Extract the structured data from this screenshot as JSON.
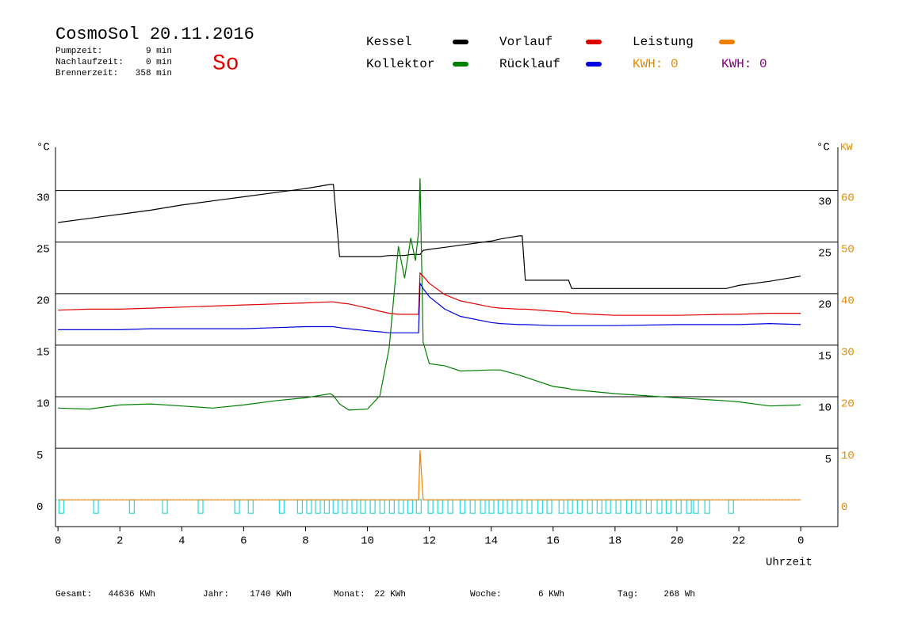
{
  "chart_data": {
    "type": "line",
    "title": "CosmoSol 20.11.2016",
    "day": "So",
    "info": [
      [
        "Pumpzeit:",
        "9 min"
      ],
      [
        "Nachlaufzeit:",
        "0 min"
      ],
      [
        "Brennerzeit:",
        "358 min"
      ]
    ],
    "energy_labels": [
      {
        "text": "KWH: 0",
        "color": "#e08a00"
      },
      {
        "text": "KWH: 0",
        "color": "#800080"
      }
    ],
    "y_unit": "°C",
    "y_unit_right": "°C",
    "y2_unit": "KW",
    "x_label": "Uhrzeit",
    "xlim": [
      -0.08,
      25.2
    ],
    "ylim": [
      -2.6,
      34.2
    ],
    "y2lim": [
      -5.2,
      68.4
    ],
    "xticks": [
      0,
      2,
      4,
      6,
      8,
      10,
      12,
      14,
      16,
      18,
      20,
      22,
      {
        "value": 24,
        "label": "0"
      }
    ],
    "yticks": [
      0,
      5,
      10,
      15,
      20,
      25,
      30
    ],
    "yticks_right": [
      5,
      10,
      15,
      20,
      25,
      30
    ],
    "y2ticks": [
      0,
      10,
      20,
      30,
      40,
      50,
      60
    ],
    "x": [
      0,
      1,
      2,
      3,
      4,
      5,
      6,
      7,
      8,
      8.8,
      8.9,
      9.1,
      9.4,
      10,
      10.4,
      10.7,
      11,
      11.2,
      11.4,
      11.55,
      11.65,
      11.7,
      11.8,
      12,
      12.5,
      13,
      14,
      14.3,
      14.9,
      15,
      15.1,
      16,
      16.5,
      16.6,
      18,
      20,
      21.6,
      22,
      23,
      24
    ],
    "series": [
      {
        "name": "Kessel",
        "color": "#000000",
        "values": [
          26.9,
          27.3,
          27.7,
          28.1,
          28.6,
          29.0,
          29.4,
          29.8,
          30.2,
          30.6,
          30.6,
          23.6,
          23.6,
          23.6,
          23.6,
          23.7,
          23.7,
          23.7,
          23.8,
          23.8,
          23.8,
          23.8,
          24.2,
          24.3,
          24.5,
          24.7,
          25.1,
          25.3,
          25.6,
          25.6,
          21.3,
          21.3,
          21.3,
          20.5,
          20.5,
          20.5,
          20.5,
          20.8,
          21.2,
          21.7
        ]
      },
      {
        "name": "Kollektor",
        "color": "#008000",
        "values": [
          8.9,
          8.8,
          9.2,
          9.3,
          9.1,
          8.9,
          9.2,
          9.6,
          9.9,
          10.3,
          10.1,
          9.3,
          8.7,
          8.8,
          10.1,
          14.7,
          24.6,
          21.5,
          25.4,
          23.2,
          26,
          31.2,
          15.3,
          13.2,
          13.0,
          12.5,
          12.6,
          12.6,
          12.1,
          12.0,
          11.9,
          11.0,
          10.8,
          10.7,
          10.3,
          9.9,
          9.6,
          9.5,
          9.1,
          9.2
        ]
      },
      {
        "name": "Vorlauf",
        "color": "#e00000",
        "values": [
          18.4,
          18.5,
          18.5,
          18.6,
          18.7,
          18.8,
          18.9,
          19.0,
          19.1,
          19.2,
          19.2,
          19.1,
          19.0,
          18.6,
          18.3,
          18.1,
          18.0,
          18.0,
          18.0,
          18.0,
          18.0,
          22.0,
          21.7,
          21.0,
          19.9,
          19.3,
          18.7,
          18.6,
          18.5,
          18.5,
          18.5,
          18.3,
          18.2,
          18.1,
          17.9,
          17.9,
          18.0,
          18.0,
          18.1,
          18.1
        ]
      },
      {
        "name": "Rücklauf",
        "color": "#0000e0",
        "values": [
          16.5,
          16.5,
          16.5,
          16.6,
          16.6,
          16.6,
          16.6,
          16.7,
          16.8,
          16.8,
          16.8,
          16.7,
          16.6,
          16.4,
          16.3,
          16.2,
          16.2,
          16.2,
          16.2,
          16.2,
          16.2,
          21.0,
          20.5,
          19.7,
          18.5,
          17.8,
          17.2,
          17.1,
          17.0,
          17.0,
          17.0,
          16.9,
          16.9,
          16.9,
          16.9,
          17.0,
          17.0,
          17.0,
          17.1,
          17.0
        ]
      },
      {
        "name": "Leistung",
        "color": "#f08000",
        "axis": "y2",
        "values": [
          0,
          0,
          0,
          0,
          0,
          0,
          0,
          0,
          0,
          0,
          0,
          0,
          0,
          0,
          0,
          0,
          0,
          0,
          0,
          0,
          0,
          9.6,
          0,
          0,
          0,
          0,
          0,
          0,
          0,
          0,
          0,
          0,
          0,
          0,
          0,
          0,
          0,
          0,
          0,
          0
        ]
      }
    ],
    "pump_color": "#00d0d0",
    "pump_pulses": [
      0.03,
      1.15,
      2.31,
      3.38,
      4.53,
      5.71,
      6.15,
      7.15,
      7.74,
      8.04,
      8.32,
      8.61,
      8.89,
      9.19,
      9.5,
      9.78,
      10.09,
      10.4,
      10.71,
      11.01,
      11.3,
      11.58,
      11.96,
      12.27,
      12.6,
      12.99,
      13.32,
      13.65,
      13.93,
      14.22,
      14.52,
      14.83,
      15.16,
      15.5,
      15.8,
      16.19,
      16.47,
      16.78,
      17.11,
      17.42,
      17.7,
      18.03,
      18.37,
      18.67,
      19.01,
      19.36,
      19.65,
      19.98,
      20.31,
      20.54,
      20.9,
      21.67
    ],
    "totals": [
      [
        "Gesamt:",
        "44636 KWh"
      ],
      [
        "Jahr:",
        "1740 KWh"
      ],
      [
        "Monat:",
        "22 KWh"
      ],
      [
        "Woche:",
        "6 KWh"
      ],
      [
        "Tag:",
        "268 Wh"
      ]
    ]
  }
}
